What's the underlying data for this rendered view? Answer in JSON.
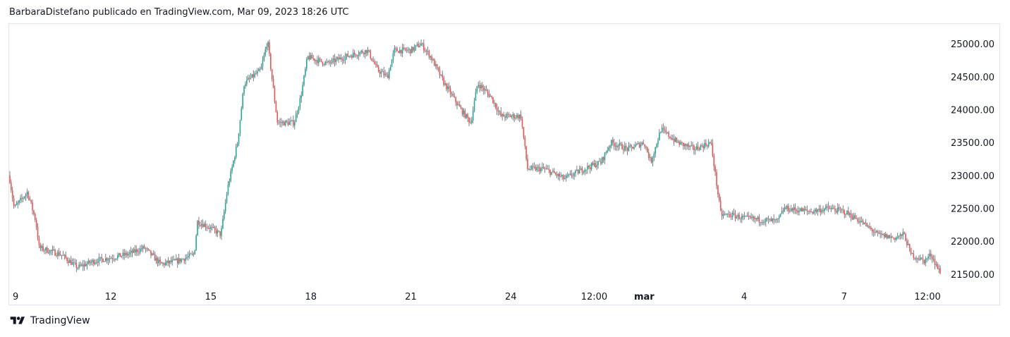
{
  "header": {
    "publisher_line": "BarbaraDistefano publicado en TradingView.com, Mar 09, 2023 18:26 UTC"
  },
  "footer": {
    "brand": "TradingView",
    "logo_icon": "tradingview-logo-icon"
  },
  "colors": {
    "up": "#26a69a",
    "down": "#ef5350",
    "wick": "#5d606b",
    "axis_text": "#131722",
    "border": "#e0e3eb"
  },
  "chart_data": {
    "type": "candlestick",
    "title": "",
    "xlabel": "",
    "ylabel": "",
    "y_range": [
      21380,
      25280
    ],
    "x_ticks": [
      {
        "label": "9",
        "day": 9.0
      },
      {
        "label": "12",
        "day": 12.0
      },
      {
        "label": "15",
        "day": 15.0
      },
      {
        "label": "18",
        "day": 18.0
      },
      {
        "label": "21",
        "day": 21.0
      },
      {
        "label": "24",
        "day": 24.0
      },
      {
        "label": "12:00",
        "day": 26.5
      },
      {
        "label": "mar",
        "day": 28.0,
        "bold": true
      },
      {
        "label": "4",
        "day": 31.0
      },
      {
        "label": "7",
        "day": 34.0
      },
      {
        "label": "12:00",
        "day": 36.5
      }
    ],
    "y_ticks": [
      "25000.00",
      "24500.00",
      "24000.00",
      "23500.00",
      "23000.00",
      "22500.00",
      "22000.00",
      "21500.00"
    ],
    "y_tick_values": [
      25000,
      24500,
      24000,
      23500,
      23000,
      22500,
      22000,
      21500
    ],
    "x_range_days": [
      8.95,
      36.9
    ],
    "price_path": [
      [
        8.95,
        23000
      ],
      [
        9.1,
        22500
      ],
      [
        9.5,
        22750
      ],
      [
        9.75,
        22300
      ],
      [
        9.85,
        21900
      ],
      [
        10.5,
        21800
      ],
      [
        11.0,
        21600
      ],
      [
        11.5,
        21700
      ],
      [
        12.5,
        21800
      ],
      [
        13.0,
        21900
      ],
      [
        13.5,
        21650
      ],
      [
        14.0,
        21700
      ],
      [
        14.5,
        21800
      ],
      [
        14.6,
        22300
      ],
      [
        15.0,
        22200
      ],
      [
        15.3,
        22100
      ],
      [
        15.5,
        22800
      ],
      [
        15.8,
        23500
      ],
      [
        16.0,
        24400
      ],
      [
        16.5,
        24600
      ],
      [
        16.7,
        25050
      ],
      [
        16.9,
        24200
      ],
      [
        17.0,
        23800
      ],
      [
        17.5,
        23800
      ],
      [
        17.7,
        24200
      ],
      [
        17.9,
        24800
      ],
      [
        18.5,
        24700
      ],
      [
        19.0,
        24800
      ],
      [
        19.7,
        24900
      ],
      [
        20.0,
        24600
      ],
      [
        20.3,
        24500
      ],
      [
        20.5,
        24900
      ],
      [
        21.0,
        24900
      ],
      [
        21.3,
        25000
      ],
      [
        21.6,
        24800
      ],
      [
        22.0,
        24400
      ],
      [
        22.5,
        24000
      ],
      [
        22.8,
        23800
      ],
      [
        23.0,
        24400
      ],
      [
        23.4,
        24200
      ],
      [
        23.7,
        23900
      ],
      [
        24.3,
        23900
      ],
      [
        24.5,
        23100
      ],
      [
        25.0,
        23100
      ],
      [
        25.6,
        22950
      ],
      [
        26.2,
        23100
      ],
      [
        26.7,
        23200
      ],
      [
        27.0,
        23500
      ],
      [
        27.5,
        23400
      ],
      [
        28.0,
        23500
      ],
      [
        28.2,
        23200
      ],
      [
        28.5,
        23700
      ],
      [
        29.0,
        23500
      ],
      [
        29.5,
        23400
      ],
      [
        30.0,
        23500
      ],
      [
        30.3,
        22400
      ],
      [
        30.6,
        22400
      ],
      [
        31.0,
        22350
      ],
      [
        32.0,
        22300
      ],
      [
        32.2,
        22500
      ],
      [
        33.0,
        22450
      ],
      [
        33.5,
        22500
      ],
      [
        34.0,
        22450
      ],
      [
        34.5,
        22300
      ],
      [
        35.0,
        22100
      ],
      [
        35.5,
        22050
      ],
      [
        35.8,
        22100
      ],
      [
        36.0,
        21800
      ],
      [
        36.4,
        21700
      ],
      [
        36.6,
        21800
      ],
      [
        36.9,
        21500
      ]
    ]
  }
}
